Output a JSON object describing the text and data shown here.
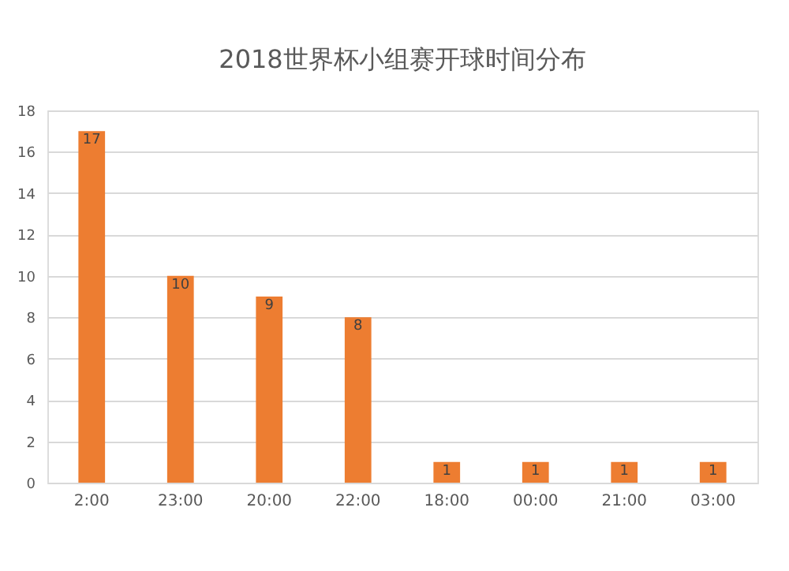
{
  "chart_data": {
    "type": "bar",
    "title": "2018世界杯小组赛开球时间分布",
    "categories": [
      "2:00",
      "23:00",
      "20:00",
      "22:00",
      "18:00",
      "00:00",
      "21:00",
      "03:00"
    ],
    "values": [
      17,
      10,
      9,
      8,
      1,
      1,
      1,
      1
    ],
    "color": "#ed7d31",
    "ylim": [
      0,
      18
    ],
    "yticks": [
      0,
      2,
      4,
      6,
      8,
      10,
      12,
      14,
      16,
      18
    ],
    "grid": "y",
    "data_labels": true
  }
}
